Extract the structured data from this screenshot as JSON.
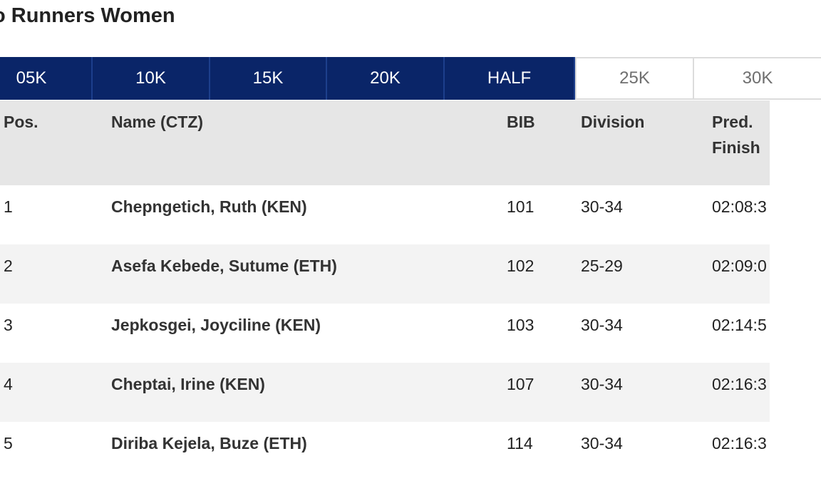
{
  "page": {
    "title": "o Runners Women"
  },
  "tabs": [
    {
      "label": "05K",
      "active": true
    },
    {
      "label": "10K",
      "active": true
    },
    {
      "label": "15K",
      "active": true
    },
    {
      "label": "20K",
      "active": true
    },
    {
      "label": "HALF",
      "active": true
    },
    {
      "label": "25K",
      "active": false
    },
    {
      "label": "30K",
      "active": false
    }
  ],
  "table": {
    "headers": {
      "pos": "Pos.",
      "name": "Name (CTZ)",
      "bib": "BIB",
      "division": "Division",
      "pred_finish": "Pred. Finish"
    },
    "rows": [
      {
        "pos": "1",
        "name": "Chepngetich, Ruth (KEN)",
        "bib": "101",
        "division": "30-34",
        "pred_finish": "02:08:3"
      },
      {
        "pos": "2",
        "name": "Asefa Kebede, Sutume (ETH)",
        "bib": "102",
        "division": "25-29",
        "pred_finish": "02:09:0"
      },
      {
        "pos": "3",
        "name": "Jepkosgei, Joyciline (KEN)",
        "bib": "103",
        "division": "30-34",
        "pred_finish": "02:14:5"
      },
      {
        "pos": "4",
        "name": "Cheptai, Irine (KEN)",
        "bib": "107",
        "division": "30-34",
        "pred_finish": "02:16:3"
      },
      {
        "pos": "5",
        "name": "Diriba Kejela, Buze (ETH)",
        "bib": "114",
        "division": "30-34",
        "pred_finish": "02:16:3"
      }
    ]
  },
  "colors": {
    "tab_active_bg": "#0a2568",
    "header_bg": "#e6e6e6",
    "row_alt_bg": "#f3f3f3"
  }
}
